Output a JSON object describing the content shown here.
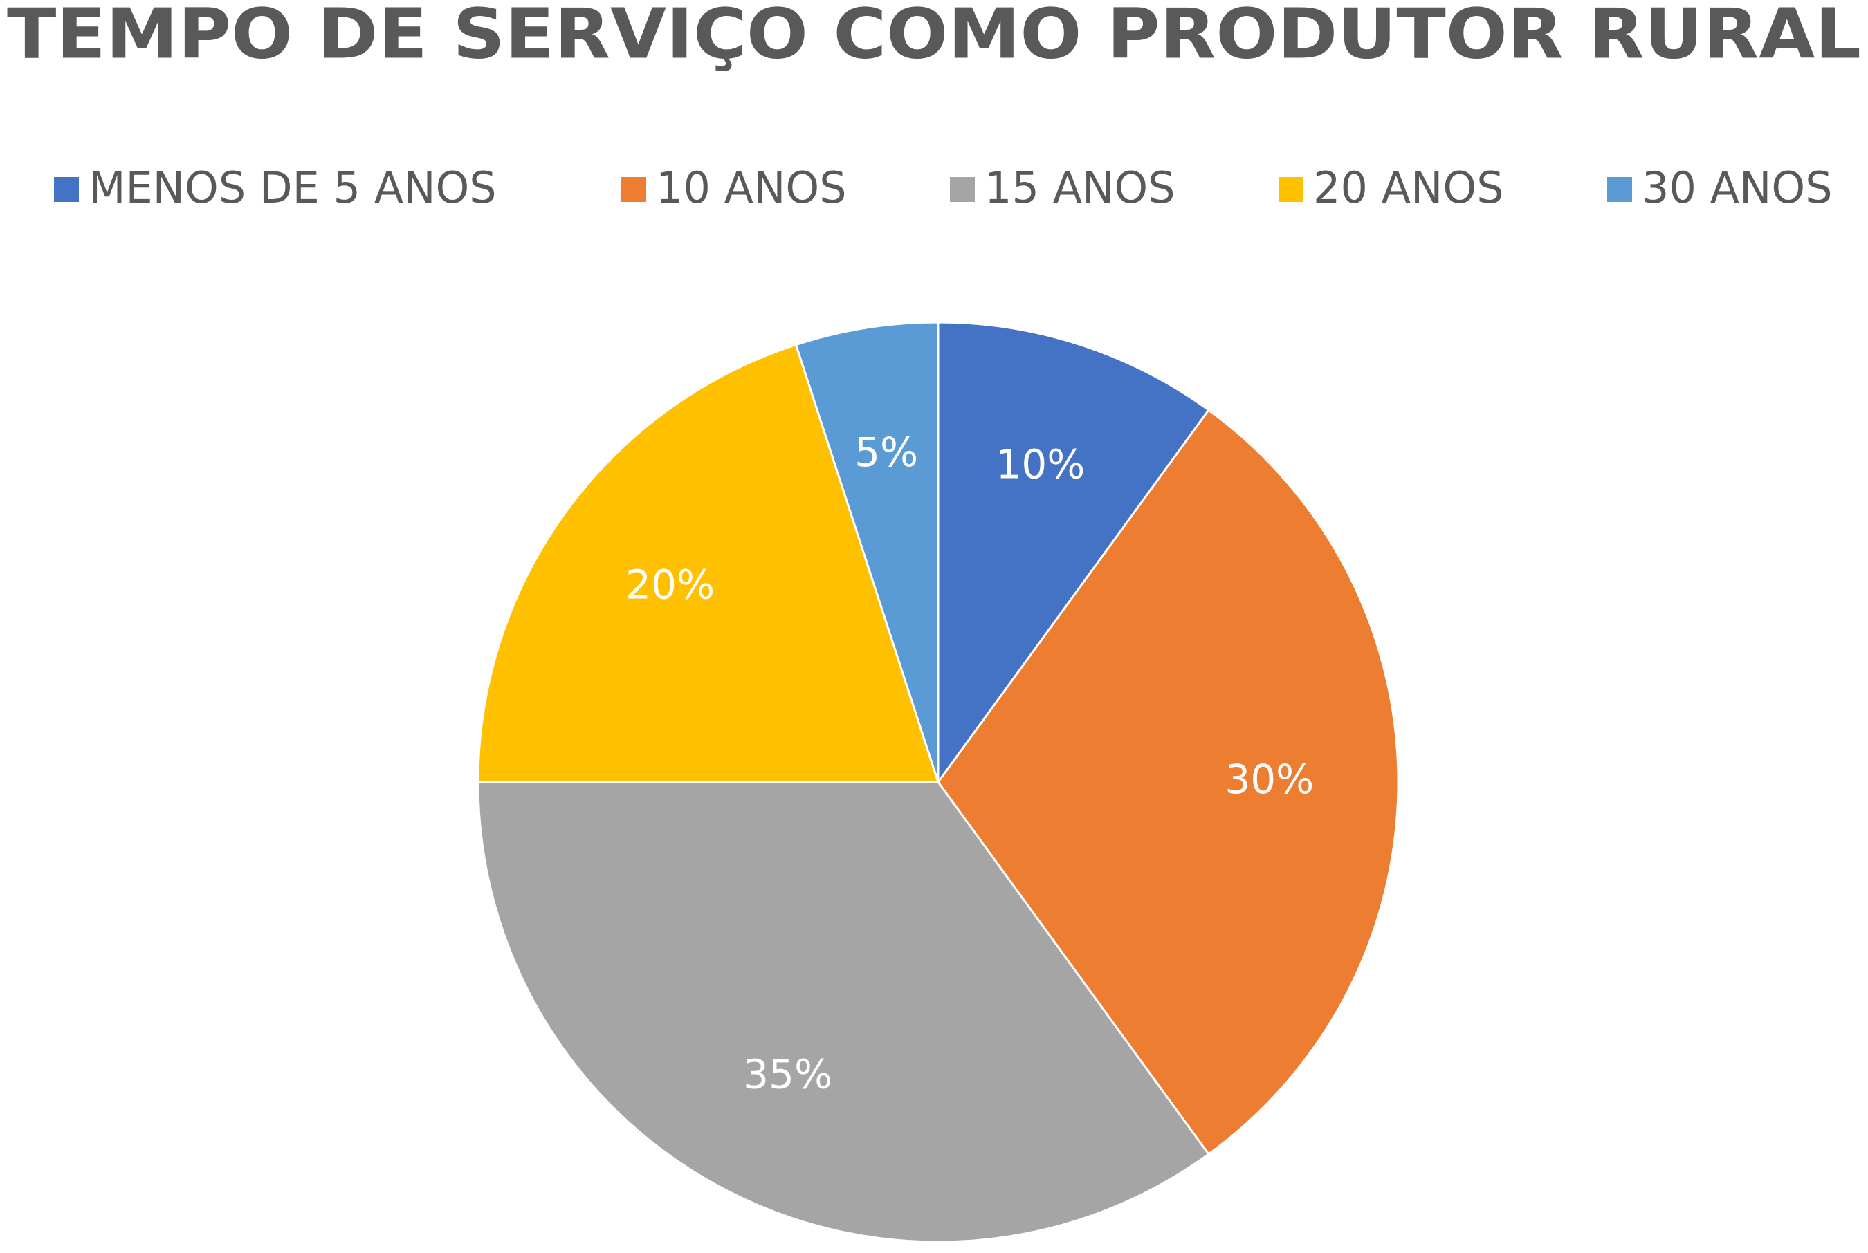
{
  "chart_data": {
    "type": "pie",
    "title": "TEMPO DE SERVIÇO COMO PRODUTOR RURAL",
    "categories": [
      "MENOS DE 5 ANOS",
      "10 ANOS",
      "15 ANOS",
      "20 ANOS",
      "30 ANOS"
    ],
    "values": [
      10,
      30,
      35,
      20,
      5
    ],
    "value_labels": [
      "10%",
      "30%",
      "35%",
      "20%",
      "5%"
    ],
    "colors": [
      "#4472c4",
      "#ed7d31",
      "#a5a5a5",
      "#ffc000",
      "#5b9bd5"
    ],
    "legend": "top"
  }
}
